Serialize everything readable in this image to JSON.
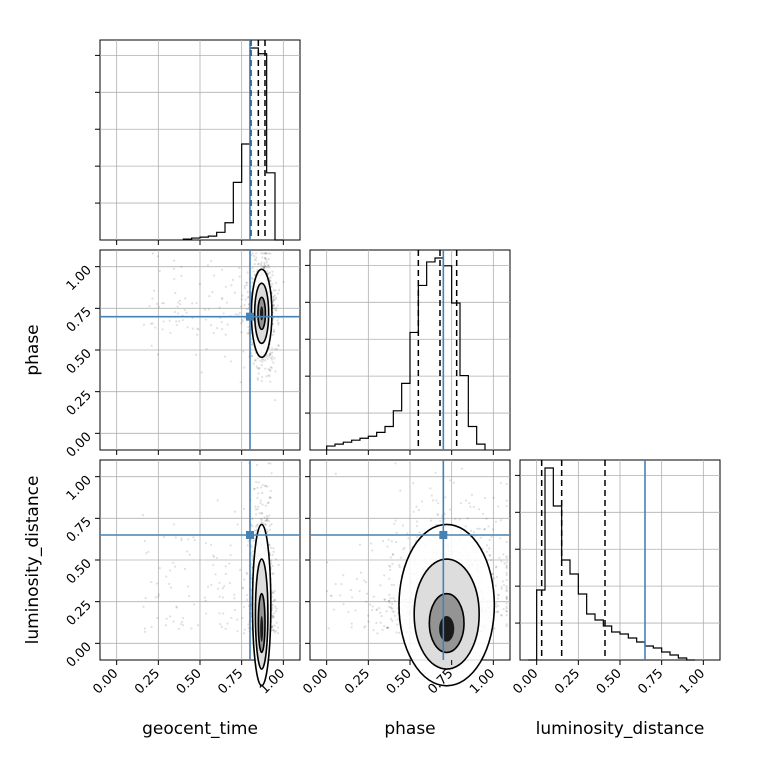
{
  "chart_data": {
    "type": "corner",
    "parameters": [
      "geocent_time",
      "phase",
      "luminosity_distance"
    ],
    "axis_labels": {
      "x": [
        "geocent_time",
        "phase",
        "luminosity_distance"
      ],
      "y": [
        "",
        "phase",
        "luminosity_distance"
      ]
    },
    "tick_values": [
      0.0,
      0.25,
      0.5,
      0.75,
      1.0
    ],
    "tick_labels": [
      "0.00",
      "0.25",
      "0.50",
      "0.75",
      "1.00"
    ],
    "range": [
      -0.1,
      1.1
    ],
    "grid": true,
    "truths": {
      "geocent_time": 0.8,
      "phase": 0.7,
      "luminosity_distance": 0.65
    },
    "truth_color": "#4682b4",
    "histograms": {
      "geocent_time": {
        "bin_edges": [
          0.4,
          0.45,
          0.5,
          0.55,
          0.6,
          0.65,
          0.7,
          0.75,
          0.8,
          0.85,
          0.9,
          0.95,
          1.0
        ],
        "counts": [
          0.5,
          1,
          1.5,
          2,
          4,
          9,
          30,
          50,
          100,
          97,
          35,
          0
        ],
        "quantiles": [
          0.805,
          0.85,
          0.89
        ]
      },
      "phase": {
        "bin_edges": [
          0.0,
          0.05,
          0.1,
          0.15,
          0.2,
          0.25,
          0.3,
          0.35,
          0.4,
          0.45,
          0.5,
          0.55,
          0.6,
          0.65,
          0.7,
          0.75,
          0.8,
          0.85,
          0.9,
          0.95
        ],
        "counts": [
          2,
          3,
          4,
          5,
          6,
          7,
          9,
          12,
          20,
          34,
          60,
          84,
          96,
          98,
          94,
          75,
          38,
          12,
          3
        ],
        "quantiles": [
          0.55,
          0.68,
          0.78
        ]
      },
      "luminosity_distance": {
        "bin_edges": [
          -0.05,
          0.0,
          0.05,
          0.1,
          0.15,
          0.2,
          0.25,
          0.3,
          0.35,
          0.4,
          0.45,
          0.5,
          0.55,
          0.6,
          0.65,
          0.7,
          0.75,
          0.8,
          0.85,
          0.9,
          0.95
        ],
        "counts": [
          0,
          35,
          96,
          77,
          50,
          43,
          33,
          23,
          20,
          17,
          14,
          13,
          11,
          9,
          7,
          6,
          4,
          2.5,
          1,
          0
        ],
        "quantiles": [
          0.03,
          0.15,
          0.41
        ]
      }
    },
    "density_2d": {
      "phase_vs_geocent_time": {
        "center": [
          0.87,
          0.72
        ],
        "spread": [
          0.028,
          0.12
        ],
        "scatter_region": {
          "x": [
            0.15,
            0.95
          ],
          "y": [
            -0.05,
            1.0
          ]
        }
      },
      "luminosity_distance_vs_geocent_time": {
        "center": [
          0.87,
          0.06
        ],
        "spread": [
          0.025,
          0.22
        ],
        "scatter_region": {
          "x": [
            0.15,
            0.95
          ],
          "y": [
            0.0,
            0.95
          ]
        }
      },
      "luminosity_distance_vs_phase": {
        "center": [
          0.72,
          0.06
        ],
        "spread": [
          0.13,
          0.22
        ],
        "scatter_region": {
          "x": [
            0.0,
            0.97
          ],
          "y": [
            0.0,
            0.95
          ]
        }
      }
    }
  }
}
